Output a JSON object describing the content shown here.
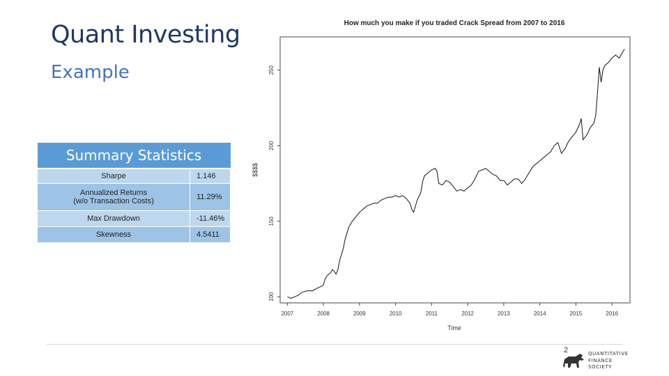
{
  "slide": {
    "title": "Quant Investing",
    "subtitle": "Example",
    "page_number": "2",
    "logo_lines": [
      "QUANTITATIVE",
      "FINANCE",
      "SOCIETY"
    ]
  },
  "stats_table": {
    "header": "Summary Statistics",
    "rows": [
      {
        "label": "Sharpe",
        "label2": "",
        "value": "1.146"
      },
      {
        "label": "Annualized Returns",
        "label2": "(w/o Transaction Costs)",
        "value": "11.29%"
      },
      {
        "label": "Max Drawdown",
        "label2": "",
        "value": "-11.46%"
      },
      {
        "label": "Skewness",
        "label2": "",
        "value": "4.5411"
      }
    ]
  },
  "colors": {
    "title": "#1f3864",
    "subtitle": "#4472c4",
    "table_header": "#5b9bd5",
    "table_row_light": "#bdd7ee",
    "table_row_dark": "#9dc3e6"
  },
  "chart_data": {
    "type": "line",
    "title": "How much you make if you traded Crack Spread from 2007 to 2016",
    "xlabel": "Time",
    "ylabel": "$$$$",
    "xlim": [
      2006.8,
      2016.5
    ],
    "ylim": [
      96,
      272
    ],
    "x_ticks": [
      2007,
      2008,
      2009,
      2010,
      2011,
      2012,
      2013,
      2014,
      2015,
      2016
    ],
    "y_ticks": [
      100,
      150,
      200,
      250
    ],
    "grid": false,
    "series": [
      {
        "values": [
          [
            2007.0,
            100
          ],
          [
            2007.1,
            99
          ],
          [
            2007.2,
            100
          ],
          [
            2007.3,
            101
          ],
          [
            2007.4,
            103
          ],
          [
            2007.55,
            104
          ],
          [
            2007.7,
            104
          ],
          [
            2007.85,
            106
          ],
          [
            2007.95,
            107
          ],
          [
            2008.0,
            108
          ],
          [
            2008.05,
            112
          ],
          [
            2008.1,
            114
          ],
          [
            2008.2,
            116
          ],
          [
            2008.25,
            118
          ],
          [
            2008.3,
            117
          ],
          [
            2008.35,
            115
          ],
          [
            2008.4,
            118
          ],
          [
            2008.45,
            124
          ],
          [
            2008.5,
            128
          ],
          [
            2008.55,
            132
          ],
          [
            2008.6,
            138
          ],
          [
            2008.7,
            146
          ],
          [
            2008.8,
            150
          ],
          [
            2008.9,
            153
          ],
          [
            2009.0,
            156
          ],
          [
            2009.1,
            158
          ],
          [
            2009.2,
            160
          ],
          [
            2009.3,
            161
          ],
          [
            2009.4,
            162
          ],
          [
            2009.5,
            162
          ],
          [
            2009.6,
            164
          ],
          [
            2009.7,
            165
          ],
          [
            2009.8,
            166
          ],
          [
            2009.9,
            166
          ],
          [
            2010.0,
            167
          ],
          [
            2010.1,
            166
          ],
          [
            2010.2,
            167
          ],
          [
            2010.3,
            165
          ],
          [
            2010.4,
            162
          ],
          [
            2010.45,
            158
          ],
          [
            2010.5,
            156
          ],
          [
            2010.55,
            160
          ],
          [
            2010.6,
            164
          ],
          [
            2010.7,
            169
          ],
          [
            2010.75,
            176
          ],
          [
            2010.8,
            180
          ],
          [
            2010.9,
            182
          ],
          [
            2011.0,
            184
          ],
          [
            2011.1,
            185
          ],
          [
            2011.15,
            183
          ],
          [
            2011.2,
            175
          ],
          [
            2011.3,
            174
          ],
          [
            2011.4,
            177
          ],
          [
            2011.5,
            176
          ],
          [
            2011.6,
            173
          ],
          [
            2011.7,
            170
          ],
          [
            2011.8,
            171
          ],
          [
            2011.9,
            170
          ],
          [
            2012.0,
            172
          ],
          [
            2012.1,
            174
          ],
          [
            2012.2,
            178
          ],
          [
            2012.3,
            183
          ],
          [
            2012.4,
            184
          ],
          [
            2012.5,
            185
          ],
          [
            2012.6,
            183
          ],
          [
            2012.7,
            181
          ],
          [
            2012.8,
            180
          ],
          [
            2012.9,
            177
          ],
          [
            2013.0,
            177
          ],
          [
            2013.1,
            174
          ],
          [
            2013.2,
            176
          ],
          [
            2013.3,
            178
          ],
          [
            2013.4,
            178
          ],
          [
            2013.5,
            175
          ],
          [
            2013.6,
            178
          ],
          [
            2013.7,
            182
          ],
          [
            2013.8,
            186
          ],
          [
            2013.9,
            188
          ],
          [
            2014.0,
            190
          ],
          [
            2014.1,
            192
          ],
          [
            2014.2,
            194
          ],
          [
            2014.3,
            196
          ],
          [
            2014.4,
            200
          ],
          [
            2014.5,
            202
          ],
          [
            2014.6,
            195
          ],
          [
            2014.7,
            198
          ],
          [
            2014.8,
            203
          ],
          [
            2014.9,
            206
          ],
          [
            2015.0,
            209
          ],
          [
            2015.1,
            214
          ],
          [
            2015.15,
            218
          ],
          [
            2015.2,
            204
          ],
          [
            2015.3,
            207
          ],
          [
            2015.4,
            212
          ],
          [
            2015.5,
            215
          ],
          [
            2015.55,
            220
          ],
          [
            2015.6,
            235
          ],
          [
            2015.65,
            252
          ],
          [
            2015.7,
            242
          ],
          [
            2015.75,
            250
          ],
          [
            2015.8,
            253
          ],
          [
            2015.9,
            255
          ],
          [
            2016.0,
            258
          ],
          [
            2016.1,
            260
          ],
          [
            2016.2,
            258
          ],
          [
            2016.3,
            262
          ],
          [
            2016.35,
            264
          ]
        ]
      }
    ]
  }
}
